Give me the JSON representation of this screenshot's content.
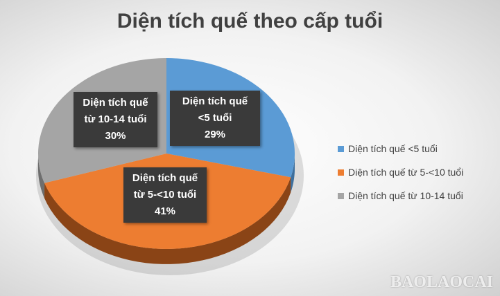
{
  "chart_data": {
    "type": "pie",
    "title": "Diện tích quế theo cấp tuổi",
    "slices": [
      {
        "name": "Diện tích quế <5 tuổi",
        "value": 29,
        "label_lines": [
          "Diện tích quế",
          "<5 tuổi",
          "29%"
        ],
        "color": "#5b9bd5",
        "side": "#3c6f9e"
      },
      {
        "name": "Diện tích quế từ 5-<10 tuổi",
        "value": 41,
        "label_lines": [
          "Diện tích quế",
          "từ 5-<10 tuổi",
          "41%"
        ],
        "color": "#ed7d31",
        "side": "#8a4416"
      },
      {
        "name": "Diện tích quế từ 10-14 tuổi",
        "value": 30,
        "label_lines": [
          "Diện tích quế",
          "từ 10-14 tuổi",
          "30%"
        ],
        "color": "#a5a5a5",
        "side": "#6e6e6e"
      }
    ],
    "legend_position": "right",
    "three_d": true
  },
  "watermark": "BAOLAOCAI"
}
